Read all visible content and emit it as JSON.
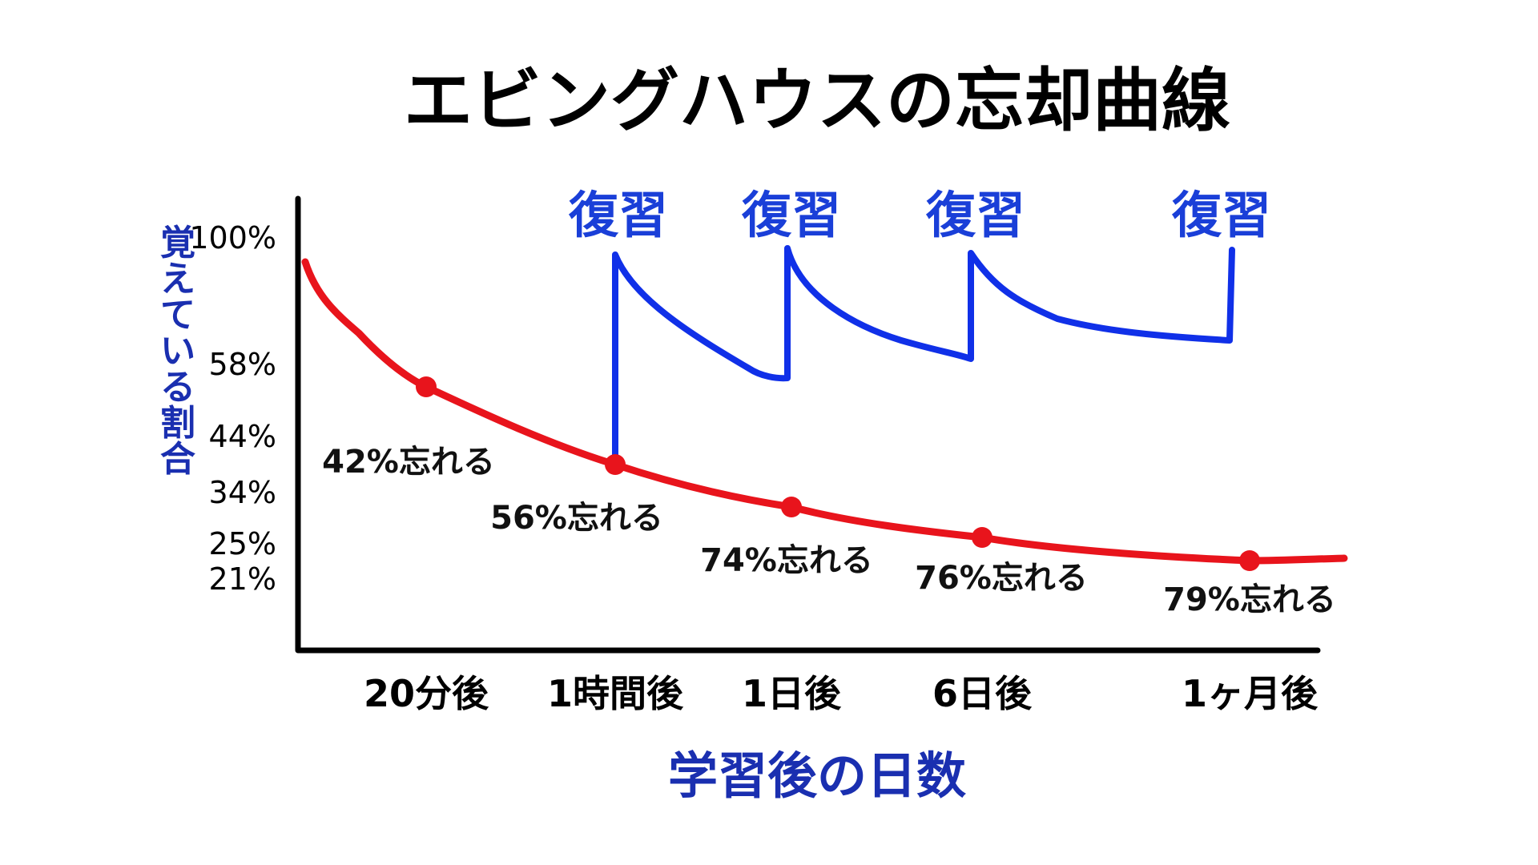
{
  "chart_data": {
    "type": "line",
    "title": "エビングハウスの忘却曲線",
    "xlabel": "学習後の日数",
    "ylabel": "覚えている割合",
    "y_tick_labels": [
      "100%",
      "58%",
      "44%",
      "34%",
      "25%",
      "21%"
    ],
    "x_tick_labels": [
      "20分後",
      "1時間後",
      "1日後",
      "6日後",
      "1ヶ月後"
    ],
    "series": [
      {
        "color": "#e8141c",
        "points": [
          {
            "x": "20分後",
            "y": 58,
            "label": "42%忘れる"
          },
          {
            "x": "1時間後",
            "y": 44,
            "label": "56%忘れる"
          },
          {
            "x": "1日後",
            "y": 26,
            "label": "74%忘れる"
          },
          {
            "x": "6日後",
            "y": 24,
            "label": "76%忘れる"
          },
          {
            "x": "1ヶ月後",
            "y": 21,
            "label": "79%忘れる"
          }
        ]
      },
      {
        "color": "#1030e8",
        "annotation_label": "復習",
        "review_points": [
          "1時間後",
          "1日後",
          "6日後",
          "1ヶ月後"
        ]
      }
    ],
    "grid": false,
    "legend": "none",
    "colors": {
      "title": "#000000",
      "axis_labels": "#1a2fb0",
      "review_text": "#1a3fd8",
      "axis_line": "#000000"
    }
  }
}
